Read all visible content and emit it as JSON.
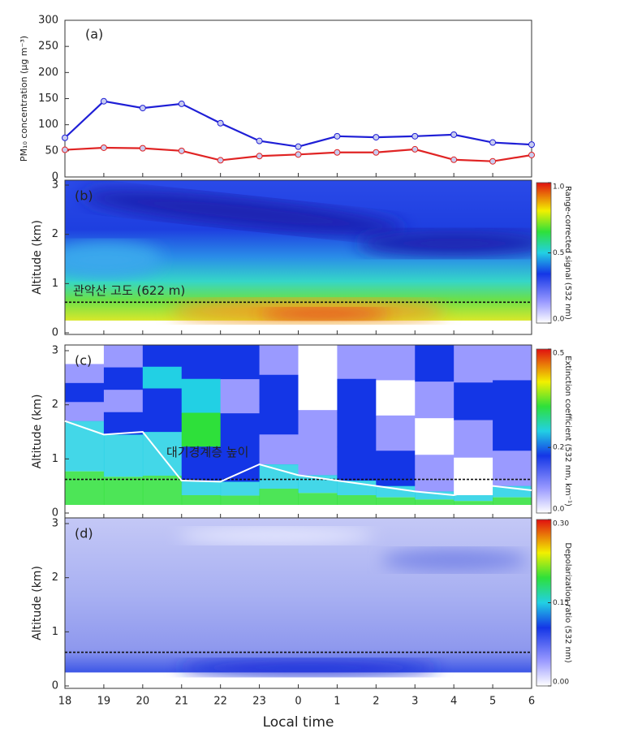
{
  "chart_data": [
    {
      "type": "line",
      "label": "(a)",
      "y_label": "PM₁₀ concentration (μg m⁻³)",
      "categories": [
        "18",
        "19",
        "20",
        "21",
        "22",
        "23",
        "0",
        "1",
        "2",
        "3",
        "4",
        "5",
        "6"
      ],
      "series": [
        {
          "color": "#1f1fd6",
          "values": [
            75,
            145,
            132,
            140,
            103,
            69,
            58,
            78,
            76,
            78,
            81,
            66,
            62
          ]
        },
        {
          "color": "#e02424",
          "values": [
            52,
            56,
            55,
            50,
            32,
            40,
            43,
            47,
            47,
            53,
            33,
            30,
            42
          ]
        }
      ],
      "ylim": [
        0,
        300
      ],
      "yticks": [
        0,
        50,
        100,
        150,
        200,
        250,
        300
      ]
    },
    {
      "type": "heatmap",
      "label": "(b)",
      "y_label": "Altitude (km)",
      "ylim": [
        0,
        3
      ],
      "yticks": [
        0,
        1,
        2,
        3
      ],
      "colorbar_label": "Range-corrected signal (532 nm)",
      "clim": [
        0,
        1
      ],
      "cticks": [
        {
          "value": 0,
          "label": "0.0"
        },
        {
          "value": 0.5,
          "label": "0.5"
        },
        {
          "value": 1,
          "label": "1.0"
        }
      ],
      "reference_line": 0.622,
      "annotation": "관악산 고도 (622 m)"
    },
    {
      "type": "heatmap",
      "label": "(c)",
      "y_label": "Altitude (km)",
      "ylim": [
        0,
        3
      ],
      "yticks": [
        0,
        1,
        2,
        3
      ],
      "colorbar_label": "Extinction coefficient (532 nm, km⁻¹)",
      "clim": [
        0,
        0.5
      ],
      "cticks": [
        {
          "value": 0,
          "label": "0.0"
        },
        {
          "value": 0.2,
          "label": "0.2"
        },
        {
          "value": 0.5,
          "label": "0.5"
        }
      ],
      "reference_line": 0.622,
      "series": [
        {
          "name": "대기경계층 높이",
          "color": "#ffffff",
          "values": [
            1.7,
            1.45,
            1.5,
            0.6,
            0.58,
            0.9,
            0.7,
            0.6,
            0.5,
            0.4,
            0.33,
            0.5,
            0.42
          ]
        }
      ]
    },
    {
      "type": "heatmap",
      "label": "(d)",
      "y_label": "Altitude (km)",
      "ylim": [
        0,
        3
      ],
      "yticks": [
        0,
        1,
        2,
        3
      ],
      "colorbar_label": "Depolarization ratio (532 nm)",
      "clim": [
        0,
        0.3
      ],
      "cticks": [
        {
          "value": 0,
          "label": "0.00"
        },
        {
          "value": 0.15,
          "label": "0.15"
        },
        {
          "value": 0.3,
          "label": "0.30"
        }
      ],
      "reference_line": 0.622,
      "x_label": "Local time"
    }
  ]
}
